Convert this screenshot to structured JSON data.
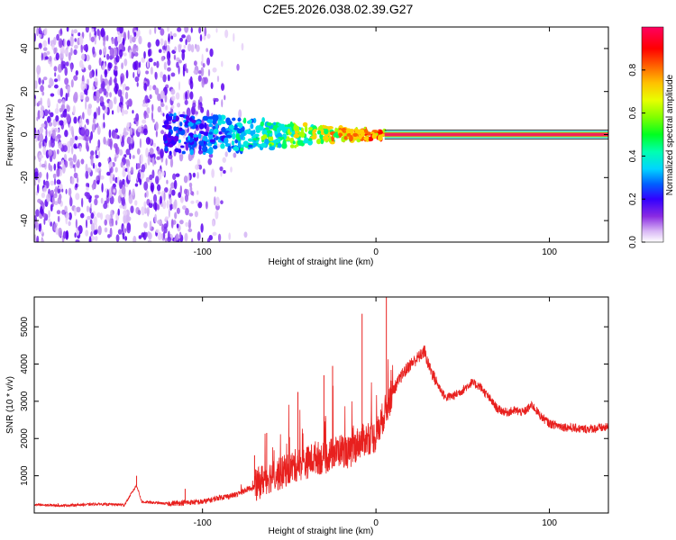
{
  "title": "C2E5.2026.038.02.39.G27",
  "colors": {
    "snr_line": "#e8201e",
    "carrier_line": "#f2215a",
    "axis": "#000000",
    "colormap": [
      "#ffffff",
      "#e6d0f8",
      "#9b55ee",
      "#5a00f0",
      "#0000ff",
      "#00a8ff",
      "#00ffd0",
      "#00ff00",
      "#b4ff00",
      "#ffff00",
      "#ff9800",
      "#ff0000",
      "#ff0050"
    ]
  },
  "chart_data": [
    {
      "type": "heatmap",
      "name": "spectrogram",
      "xlabel": "Height of straight line (km)",
      "ylabel": "Frequency (Hz)",
      "xlim": [
        -197,
        134
      ],
      "ylim": [
        -50,
        50
      ],
      "xticks": [
        -100,
        0,
        100
      ],
      "xtick_labels": [
        "-100",
        "0",
        "100"
      ],
      "yticks": [
        -40,
        -20,
        0,
        20,
        40
      ],
      "ytick_labels": [
        "-40",
        "-20",
        "0",
        "20",
        "40"
      ],
      "carrier_frequency_hz": 0,
      "carrier_start_km": 5,
      "description_series": [
        {
          "name": "noise_region_x_km",
          "values": [
            -197,
            -80
          ]
        },
        {
          "name": "scintillation_region_x_km",
          "values": [
            -120,
            5
          ]
        }
      ],
      "colorbar": {
        "label": "Normalized spectral amplitude",
        "range": [
          0,
          1
        ],
        "ticks": [
          0,
          0.2,
          0.4,
          0.6,
          0.8
        ],
        "tick_labels": [
          "0.0",
          "0.2",
          "0.4",
          "0.6",
          "0.8"
        ]
      }
    },
    {
      "type": "line",
      "name": "snr",
      "xlabel": "Height of straight line (km)",
      "ylabel": "SNR (10 * v/v)",
      "xlim": [
        -197,
        134
      ],
      "ylim": [
        0,
        5800
      ],
      "xticks": [
        -100,
        0,
        100
      ],
      "xtick_labels": [
        "-100",
        "0",
        "100"
      ],
      "yticks": [
        1000,
        2000,
        3000,
        4000,
        5000
      ],
      "ytick_labels": [
        "1000",
        "2000",
        "3000",
        "4000",
        "5000"
      ],
      "series": [
        {
          "name": "SNR",
          "x": [
            -197,
            -180,
            -160,
            -145,
            -138,
            -135,
            -120,
            -110,
            -100,
            -95,
            -90,
            -85,
            -80,
            -75,
            -70,
            -65,
            -60,
            -55,
            -50,
            -45,
            -40,
            -35,
            -30,
            -25,
            -20,
            -15,
            -10,
            -5,
            0,
            5,
            10,
            15,
            20,
            25,
            28,
            30,
            35,
            40,
            45,
            50,
            55,
            60,
            65,
            70,
            75,
            80,
            85,
            90,
            95,
            100,
            110,
            120,
            134
          ],
          "values": [
            220,
            200,
            240,
            220,
            750,
            300,
            250,
            280,
            300,
            350,
            420,
            450,
            500,
            620,
            700,
            900,
            1000,
            1050,
            1200,
            1300,
            1350,
            1500,
            1450,
            1600,
            1700,
            1600,
            1900,
            2000,
            2050,
            2700,
            3300,
            3700,
            4000,
            4200,
            4350,
            4000,
            3500,
            3100,
            3150,
            3300,
            3500,
            3400,
            3100,
            2800,
            2700,
            2750,
            2700,
            2900,
            2600,
            2400,
            2300,
            2250,
            2300
          ]
        }
      ],
      "spikes": [
        {
          "x": -138,
          "y": 1000
        },
        {
          "x": -110,
          "y": 650
        },
        {
          "x": -70,
          "y": 1550
        },
        {
          "x": -63,
          "y": 2150
        },
        {
          "x": -45,
          "y": 3250
        },
        {
          "x": -30,
          "y": 3700
        },
        {
          "x": -25,
          "y": 3950
        },
        {
          "x": -8,
          "y": 5350
        },
        {
          "x": 6,
          "y": 5800
        },
        {
          "x": 28,
          "y": 4500
        }
      ]
    }
  ]
}
